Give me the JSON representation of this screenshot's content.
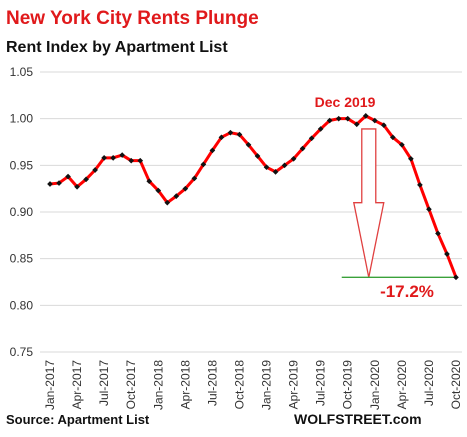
{
  "colors": {
    "title_red": "#e0191b",
    "line": "#ff0000",
    "marker": "#111111",
    "grid": "#d9d9d9",
    "arrow_outline": "#e04040",
    "baseline": "#3aa13a"
  },
  "chart_data": {
    "type": "line",
    "title": "New York City Rents Plunge",
    "subtitle": "Rent Index by Apartment List",
    "source": "Source: Apartment List",
    "brand": "WOLFSTREET.com",
    "ylim": [
      0.75,
      1.05
    ],
    "yticks": [
      "0.75",
      "0.80",
      "0.85",
      "0.90",
      "0.95",
      "1.00",
      "1.05"
    ],
    "grid": true,
    "xtick_labels": [
      "Jan-2017",
      "Apr-2017",
      "Jul-2017",
      "Oct-2017",
      "Jan-2018",
      "Apr-2018",
      "Jul-2018",
      "Oct-2018",
      "Jan-2019",
      "Apr-2019",
      "Jul-2019",
      "Oct-2019",
      "Jan-2020",
      "Apr-2020",
      "Jul-2020",
      "Oct-2020"
    ],
    "series": [
      {
        "x": [
          "Jan-2017",
          "Feb-2017",
          "Mar-2017",
          "Apr-2017",
          "May-2017",
          "Jun-2017",
          "Jul-2017",
          "Aug-2017",
          "Sep-2017",
          "Oct-2017",
          "Nov-2017",
          "Dec-2017",
          "Jan-2018",
          "Feb-2018",
          "Mar-2018",
          "Apr-2018",
          "May-2018",
          "Jun-2018",
          "Jul-2018",
          "Aug-2018",
          "Sep-2018",
          "Oct-2018",
          "Nov-2018",
          "Dec-2018",
          "Jan-2019",
          "Feb-2019",
          "Mar-2019",
          "Apr-2019",
          "May-2019",
          "Jun-2019",
          "Jul-2019",
          "Aug-2019",
          "Sep-2019",
          "Oct-2019",
          "Nov-2019",
          "Dec-2019",
          "Jan-2020",
          "Feb-2020",
          "Mar-2020",
          "Apr-2020",
          "May-2020",
          "Jun-2020",
          "Jul-2020",
          "Aug-2020",
          "Sep-2020",
          "Oct-2020"
        ],
        "values": [
          0.93,
          0.931,
          0.938,
          0.927,
          0.935,
          0.945,
          0.958,
          0.958,
          0.961,
          0.955,
          0.955,
          0.933,
          0.923,
          0.91,
          0.917,
          0.925,
          0.936,
          0.951,
          0.966,
          0.98,
          0.985,
          0.983,
          0.972,
          0.96,
          0.948,
          0.943,
          0.95,
          0.957,
          0.968,
          0.979,
          0.989,
          0.998,
          1.0,
          1.0,
          0.994,
          1.003,
          0.998,
          0.993,
          0.98,
          0.972,
          0.957,
          0.929,
          0.903,
          0.877,
          0.855,
          0.83
        ]
      }
    ],
    "annotations": {
      "peak_label": "Dec 2019",
      "change_label": "-17.2%"
    }
  }
}
